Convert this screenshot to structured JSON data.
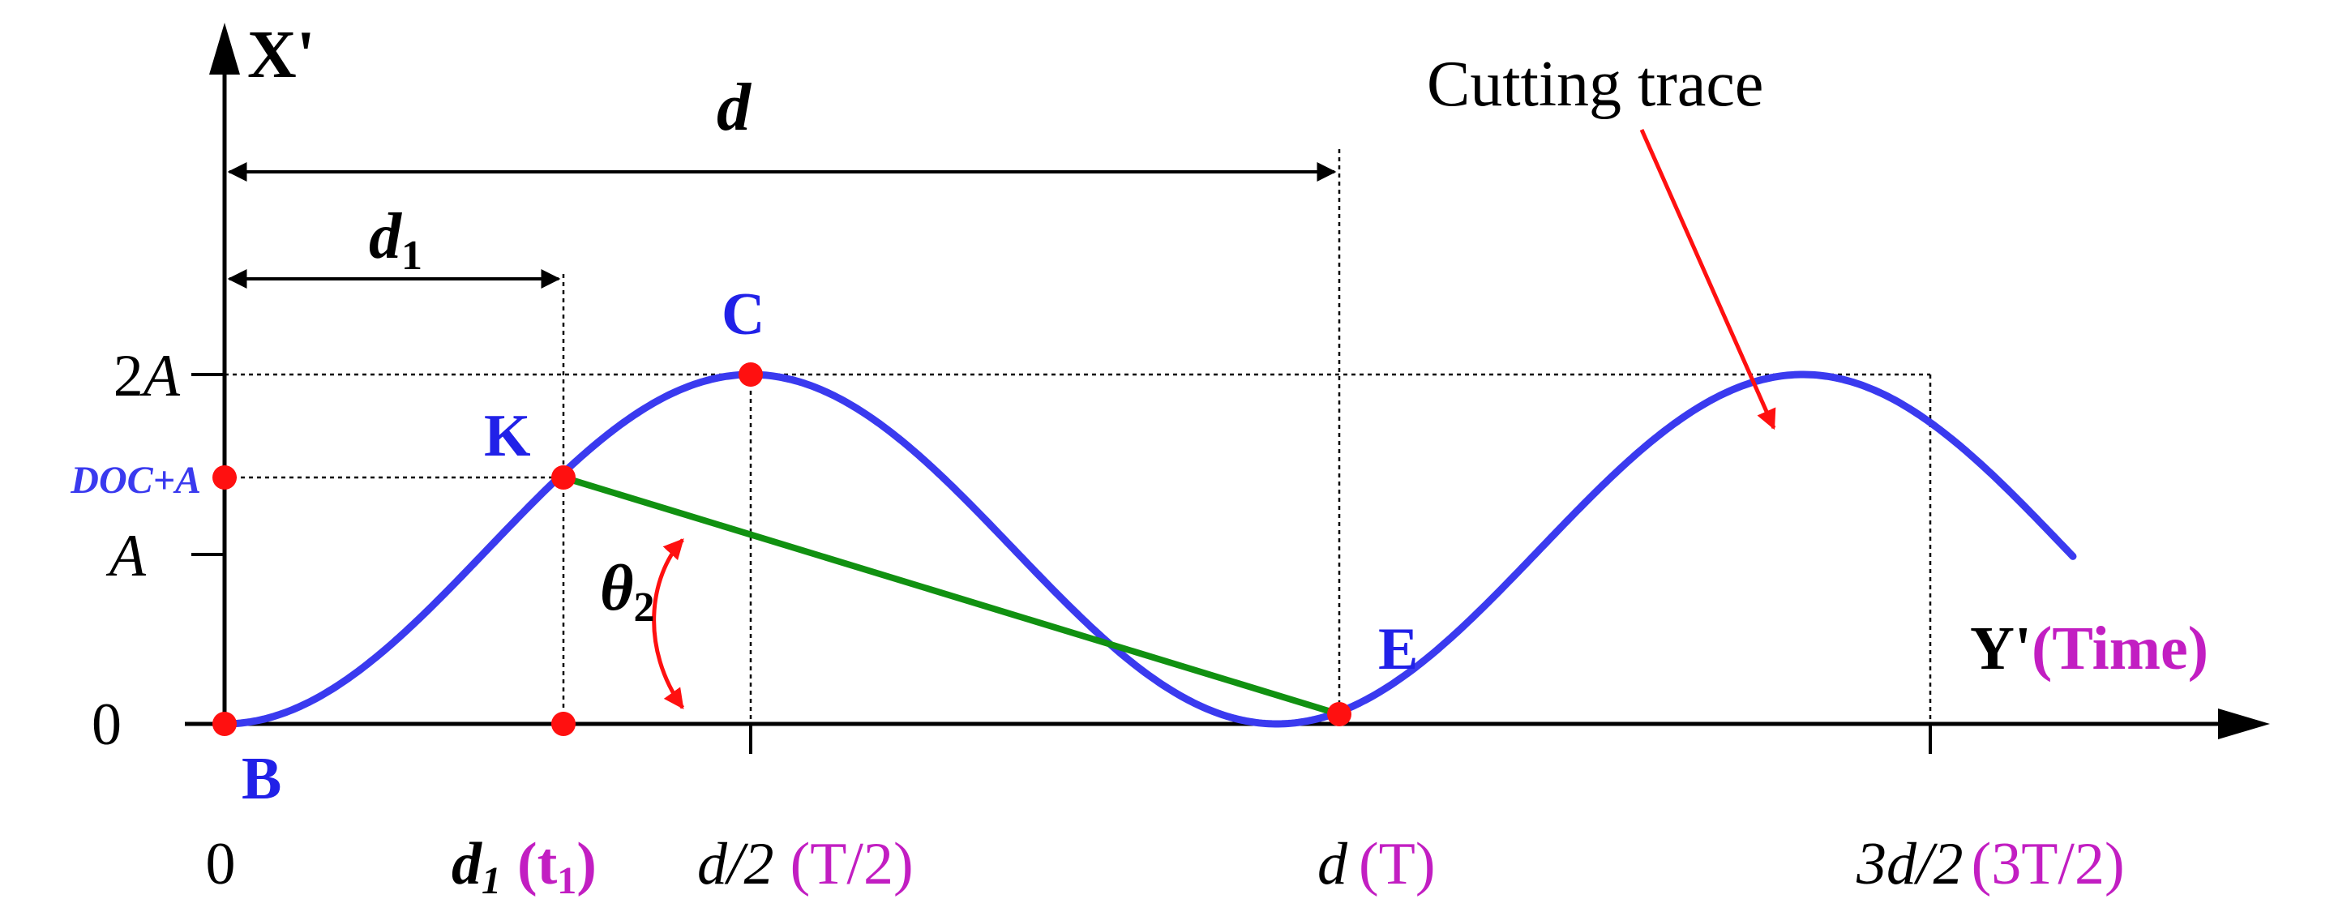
{
  "axes": {
    "y_axis_label": "X'",
    "x_axis_label": "Y'",
    "x_axis_label_suffix": "(Time)"
  },
  "y_ticks": {
    "two_a": "2A",
    "doc_plus_a": "DOC+A",
    "a": "A",
    "zero": "0"
  },
  "x_ticks": {
    "zero": "0",
    "d1": "d",
    "d1_sub": "1",
    "t1_open": "(t",
    "t1_sub": "1",
    "t1_close": ")",
    "half_d": "d/2",
    "half_t": "(T/2)",
    "d": "d",
    "t": "(T)",
    "three_half_d": "3d/2",
    "three_half_t": "(3T/2)"
  },
  "dimensions": {
    "d_label": "d",
    "d1_label": "d",
    "d1_sub": "1"
  },
  "points": {
    "b": "B",
    "k": "K",
    "c": "C",
    "e": "E"
  },
  "annotations": {
    "angle": "θ",
    "angle_sub": "2",
    "cutting_trace": "Cutting trace"
  },
  "colors": {
    "curve": "#3a3aef",
    "point_label": "#2121e8",
    "point_marker": "#ff1010",
    "chord": "#119111",
    "magenta": "#c21ec2",
    "arrow": "#ff1010",
    "axis": "#000000"
  }
}
